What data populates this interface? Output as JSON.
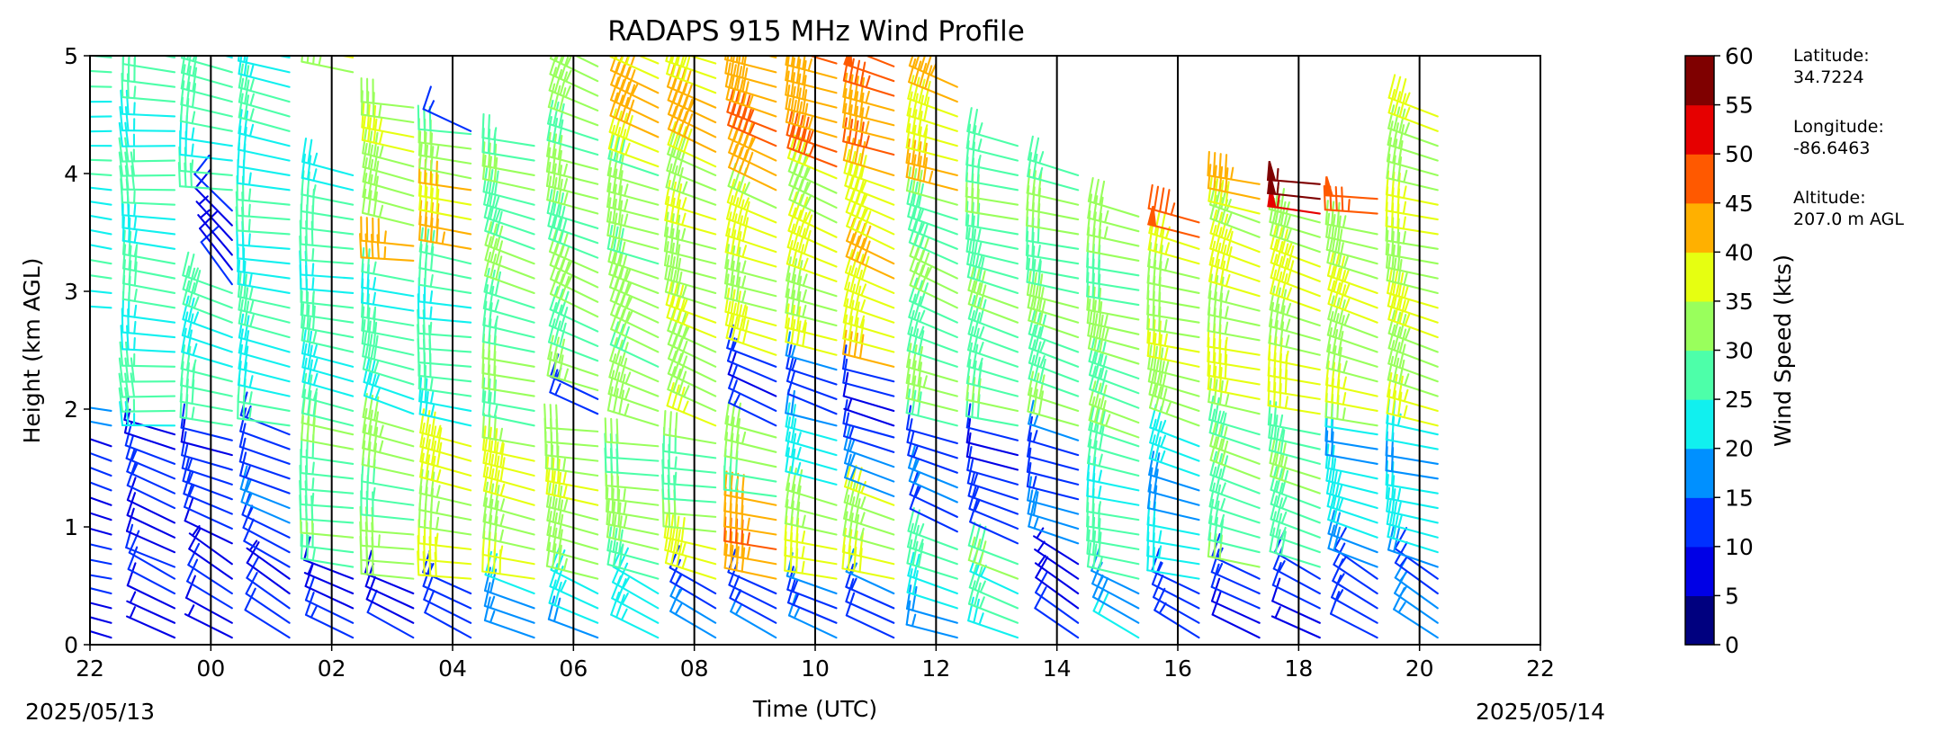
{
  "chart_data": {
    "type": "wind_barbs",
    "title": "RADAPS 915 MHz Wind Profile",
    "xlabel": "Time (UTC)",
    "ylabel": "Height (km AGL)",
    "xlim": [
      22,
      46
    ],
    "ylim": [
      0,
      5
    ],
    "x_ticks": [
      "22",
      "00",
      "02",
      "04",
      "06",
      "08",
      "10",
      "12",
      "14",
      "16",
      "18",
      "20",
      "22"
    ],
    "y_ticks": [
      "0",
      "1",
      "2",
      "3",
      "4",
      "5"
    ],
    "start_date": "2025/05/13",
    "end_date": "2025/05/14",
    "colorbar": {
      "label": "Wind Speed (kts)",
      "ticks": [
        "0",
        "5",
        "10",
        "15",
        "20",
        "25",
        "30",
        "35",
        "40",
        "45",
        "50",
        "55",
        "60"
      ],
      "colors": [
        "#00007f",
        "#0000e6",
        "#0030ff",
        "#0090ff",
        "#11f0ef",
        "#4dffa9",
        "#99ff5c",
        "#e6ff11",
        "#ffb000",
        "#ff5900",
        "#e60000",
        "#7f0000"
      ]
    },
    "site": {
      "latitude_label": "Latitude:",
      "latitude": "34.7224",
      "longitude_label": "Longitude:",
      "longitude": "-86.6463",
      "altitude_label": "Altitude:",
      "altitude": "207.0 m AGL"
    },
    "profiles": [
      {
        "time": 22.35,
        "top": 2.8,
        "segments": [
          [
            0.0,
            0.5,
            9,
            290
          ],
          [
            0.5,
            1.8,
            10,
            285
          ],
          [
            1.8,
            2.0,
            18,
            280
          ],
          [
            2.8,
            5.0,
            24,
            275
          ]
        ]
      },
      {
        "time": 23.4,
        "top": 4.9,
        "segments": [
          [
            0.0,
            0.6,
            8,
            300
          ],
          [
            0.6,
            1.8,
            11,
            290
          ],
          [
            1.8,
            5.0,
            26,
            275
          ]
        ]
      },
      {
        "time": 24.35,
        "top": 4.9,
        "segments": [
          [
            0.0,
            0.8,
            8,
            300
          ],
          [
            0.8,
            1.8,
            12,
            290
          ],
          [
            1.8,
            3.0,
            25,
            285
          ],
          [
            3.0,
            3.8,
            9,
            320
          ],
          [
            3.8,
            5.0,
            27,
            280
          ]
        ]
      },
      {
        "time": 25.3,
        "top": 4.9,
        "segments": [
          [
            0.0,
            0.6,
            9,
            300
          ],
          [
            0.6,
            1.8,
            13,
            295
          ],
          [
            1.8,
            5.0,
            24,
            280
          ]
        ]
      },
      {
        "time": 26.35,
        "top": 4.9,
        "segments": [
          [
            0.0,
            0.6,
            10,
            290
          ],
          [
            0.6,
            1.8,
            28,
            280
          ],
          [
            1.8,
            4.1,
            26,
            280
          ],
          [
            4.8,
            5.0,
            36,
            285
          ]
        ]
      },
      {
        "time": 27.35,
        "top": 4.6,
        "segments": [
          [
            0.0,
            0.5,
            11,
            295
          ],
          [
            0.5,
            1.9,
            30,
            280
          ],
          [
            1.9,
            3.2,
            27,
            285
          ],
          [
            3.2,
            3.5,
            42,
            275
          ],
          [
            3.5,
            4.6,
            33,
            280
          ]
        ]
      },
      {
        "time": 28.3,
        "top": 4.4,
        "segments": [
          [
            0.0,
            0.5,
            13,
            300
          ],
          [
            0.5,
            1.8,
            36,
            280
          ],
          [
            1.8,
            3.3,
            27,
            280
          ],
          [
            3.3,
            3.9,
            42,
            275
          ],
          [
            3.9,
            4.4,
            30,
            280
          ],
          [
            4.3,
            4.45,
            16,
            300
          ]
        ]
      },
      {
        "time": 29.35,
        "top": 4.3,
        "segments": [
          [
            0.0,
            0.5,
            18,
            295
          ],
          [
            0.5,
            1.8,
            36,
            280
          ],
          [
            1.8,
            4.3,
            29,
            285
          ]
        ]
      },
      {
        "time": 30.4,
        "top": 4.9,
        "segments": [
          [
            0.0,
            0.5,
            20,
            295
          ],
          [
            0.5,
            1.9,
            33,
            280
          ],
          [
            1.9,
            2.1,
            12,
            300
          ],
          [
            2.1,
            5.0,
            31,
            290
          ]
        ]
      },
      {
        "time": 31.4,
        "top": 4.9,
        "segments": [
          [
            0.0,
            0.5,
            22,
            295
          ],
          [
            0.5,
            1.8,
            32,
            280
          ],
          [
            1.8,
            4.0,
            32,
            290
          ],
          [
            4.0,
            5.0,
            40,
            290
          ]
        ]
      },
      {
        "time": 32.35,
        "top": 4.9,
        "segments": [
          [
            0.0,
            0.5,
            14,
            295
          ],
          [
            0.5,
            0.9,
            38,
            285
          ],
          [
            0.9,
            1.8,
            29,
            280
          ],
          [
            1.8,
            4.0,
            33,
            290
          ],
          [
            4.0,
            5.0,
            40,
            290
          ]
        ]
      },
      {
        "time": 33.35,
        "top": 4.9,
        "segments": [
          [
            0.0,
            0.5,
            14,
            295
          ],
          [
            0.5,
            1.2,
            43,
            285
          ],
          [
            1.2,
            1.8,
            30,
            280
          ],
          [
            1.8,
            2.4,
            12,
            290
          ],
          [
            2.4,
            3.8,
            36,
            290
          ],
          [
            3.8,
            5.0,
            43,
            290
          ]
        ]
      },
      {
        "time": 34.35,
        "top": 4.9,
        "segments": [
          [
            0.0,
            0.5,
            16,
            295
          ],
          [
            0.5,
            1.3,
            34,
            285
          ],
          [
            1.3,
            1.9,
            22,
            280
          ],
          [
            1.9,
            2.4,
            14,
            290
          ],
          [
            2.4,
            4.0,
            36,
            290
          ],
          [
            4.0,
            5.0,
            43,
            290
          ]
        ]
      },
      {
        "time": 35.3,
        "top": 4.9,
        "segments": [
          [
            0.0,
            0.5,
            14,
            300
          ],
          [
            0.5,
            1.2,
            36,
            285
          ],
          [
            1.2,
            1.8,
            14,
            285
          ],
          [
            1.8,
            2.3,
            9,
            290
          ],
          [
            2.3,
            4.1,
            38,
            290
          ],
          [
            4.1,
            5.0,
            46,
            290
          ]
        ]
      },
      {
        "time": 36.35,
        "top": 4.8,
        "segments": [
          [
            0.0,
            0.5,
            18,
            290
          ],
          [
            0.5,
            0.9,
            28,
            285
          ],
          [
            0.9,
            1.8,
            13,
            290
          ],
          [
            1.8,
            3.8,
            30,
            290
          ],
          [
            3.8,
            4.8,
            40,
            290
          ]
        ]
      },
      {
        "time": 37.35,
        "top": 4.3,
        "segments": [
          [
            0.0,
            0.5,
            23,
            290
          ],
          [
            0.5,
            0.8,
            32,
            285
          ],
          [
            0.8,
            1.8,
            12,
            290
          ],
          [
            1.8,
            4.3,
            28,
            285
          ]
        ]
      },
      {
        "time": 38.35,
        "top": 4.1,
        "segments": [
          [
            0.0,
            0.8,
            9,
            300
          ],
          [
            0.8,
            1.8,
            15,
            290
          ],
          [
            1.8,
            4.1,
            29,
            285
          ]
        ]
      },
      {
        "time": 39.35,
        "top": 3.7,
        "segments": [
          [
            0.0,
            0.5,
            18,
            295
          ],
          [
            0.5,
            1.7,
            27,
            285
          ],
          [
            1.7,
            3.7,
            31,
            285
          ]
        ]
      },
      {
        "time": 40.35,
        "top": 3.6,
        "segments": [
          [
            0.0,
            0.5,
            14,
            300
          ],
          [
            0.5,
            1.8,
            21,
            285
          ],
          [
            1.8,
            3.4,
            34,
            285
          ],
          [
            3.4,
            3.7,
            48,
            280
          ]
        ]
      },
      {
        "time": 41.35,
        "top": 4.0,
        "segments": [
          [
            0.0,
            0.6,
            12,
            300
          ],
          [
            0.6,
            1.9,
            28,
            285
          ],
          [
            1.9,
            3.6,
            36,
            285
          ],
          [
            3.6,
            4.0,
            42,
            280
          ]
        ]
      },
      {
        "time": 42.35,
        "top": 4.0,
        "segments": [
          [
            0.0,
            0.6,
            10,
            300
          ],
          [
            0.6,
            1.9,
            28,
            285
          ],
          [
            1.9,
            3.6,
            36,
            285
          ],
          [
            3.6,
            4.0,
            53,
            280
          ]
        ]
      },
      {
        "time": 43.3,
        "top": 3.9,
        "segments": [
          [
            0.0,
            0.6,
            12,
            300
          ],
          [
            0.6,
            1.8,
            22,
            285
          ],
          [
            1.8,
            3.6,
            34,
            285
          ],
          [
            3.6,
            3.9,
            45,
            280
          ]
        ]
      },
      {
        "time": 44.3,
        "top": 4.5,
        "segments": [
          [
            0.0,
            0.6,
            14,
            300
          ],
          [
            0.6,
            1.8,
            21,
            285
          ],
          [
            1.8,
            4.5,
            34,
            285
          ]
        ]
      }
    ]
  }
}
